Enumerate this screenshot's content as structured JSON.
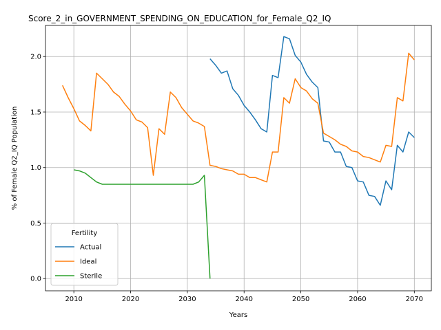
{
  "chart_data": {
    "type": "line",
    "title": "Score_2_in_GOVERNMENT_SPENDING_ON_EDUCATION_for_Female_Q2_IQ",
    "xlabel": "Years",
    "ylabel": "% of Female Q2_IQ Population",
    "xlim": [
      2005,
      2073
    ],
    "ylim": [
      -0.11,
      2.28
    ],
    "xticks": [
      2010,
      2020,
      2030,
      2040,
      2050,
      2060,
      2070
    ],
    "yticks": [
      0.0,
      0.5,
      1.0,
      1.5,
      2.0
    ],
    "grid": true,
    "legend": {
      "title": "Fertility",
      "placement": "lower-left"
    },
    "series": [
      {
        "name": "Actual",
        "color": "#1f77b4",
        "x": [
          2034,
          2035,
          2036,
          2037,
          2038,
          2039,
          2040,
          2041,
          2042,
          2043,
          2044,
          2045,
          2046,
          2047,
          2048,
          2049,
          2050,
          2051,
          2052,
          2053,
          2054,
          2055,
          2056,
          2057,
          2058,
          2059,
          2060,
          2061,
          2062,
          2063,
          2064,
          2065,
          2066,
          2067,
          2068,
          2069,
          2070
        ],
        "y": [
          1.98,
          1.92,
          1.85,
          1.87,
          1.71,
          1.65,
          1.56,
          1.5,
          1.43,
          1.35,
          1.32,
          1.83,
          1.81,
          2.18,
          2.16,
          2.01,
          1.95,
          1.84,
          1.77,
          1.72,
          1.24,
          1.23,
          1.14,
          1.14,
          1.01,
          1.0,
          0.88,
          0.87,
          0.75,
          0.74,
          0.66,
          0.88,
          0.8,
          1.2,
          1.14,
          1.32,
          1.27
        ]
      },
      {
        "name": "Ideal",
        "color": "#ff7f0e",
        "x": [
          2008,
          2009,
          2010,
          2011,
          2012,
          2013,
          2014,
          2015,
          2016,
          2017,
          2018,
          2019,
          2020,
          2021,
          2022,
          2023,
          2024,
          2025,
          2026,
          2027,
          2028,
          2029,
          2030,
          2031,
          2032,
          2033,
          2034,
          2035,
          2036,
          2037,
          2038,
          2039,
          2040,
          2041,
          2042,
          2043,
          2044,
          2045,
          2046,
          2047,
          2048,
          2049,
          2050,
          2051,
          2052,
          2053,
          2054,
          2055,
          2056,
          2057,
          2058,
          2059,
          2060,
          2061,
          2062,
          2063,
          2064,
          2065,
          2066,
          2067,
          2068,
          2069,
          2070
        ],
        "y": [
          1.74,
          1.63,
          1.53,
          1.42,
          1.38,
          1.33,
          1.85,
          1.8,
          1.75,
          1.68,
          1.64,
          1.57,
          1.51,
          1.43,
          1.41,
          1.36,
          0.93,
          1.35,
          1.3,
          1.68,
          1.63,
          1.54,
          1.48,
          1.42,
          1.4,
          1.37,
          1.02,
          1.01,
          0.99,
          0.98,
          0.97,
          0.94,
          0.94,
          0.91,
          0.91,
          0.89,
          0.87,
          1.14,
          1.14,
          1.63,
          1.58,
          1.8,
          1.72,
          1.69,
          1.62,
          1.58,
          1.31,
          1.28,
          1.25,
          1.21,
          1.19,
          1.15,
          1.14,
          1.1,
          1.09,
          1.07,
          1.05,
          1.2,
          1.19,
          1.63,
          1.6,
          2.03,
          1.97
        ]
      },
      {
        "name": "Sterile",
        "color": "#2ca02c",
        "x": [
          2010,
          2011,
          2012,
          2013,
          2014,
          2015,
          2016,
          2017,
          2018,
          2019,
          2020,
          2021,
          2022,
          2023,
          2024,
          2025,
          2026,
          2027,
          2028,
          2029,
          2030,
          2031,
          2032,
          2033,
          2034
        ],
        "y": [
          0.98,
          0.97,
          0.95,
          0.91,
          0.87,
          0.85,
          0.85,
          0.85,
          0.85,
          0.85,
          0.85,
          0.85,
          0.85,
          0.85,
          0.85,
          0.85,
          0.85,
          0.85,
          0.85,
          0.85,
          0.85,
          0.85,
          0.87,
          0.93,
          0.0
        ]
      }
    ]
  }
}
